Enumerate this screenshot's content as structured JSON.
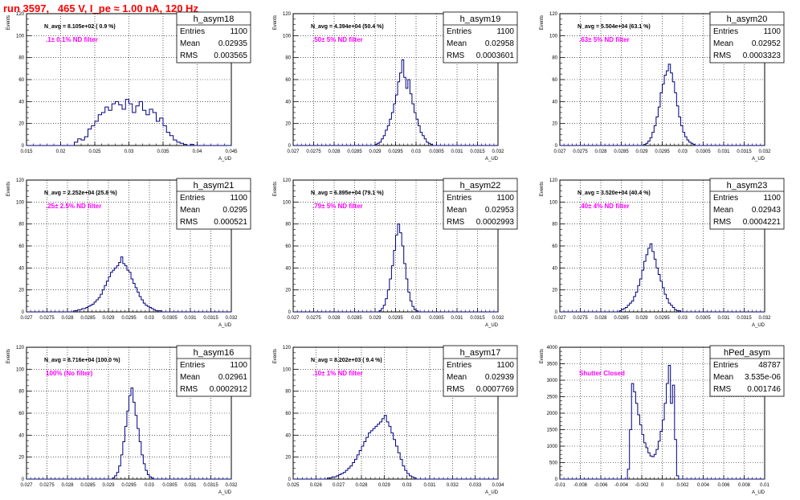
{
  "page": {
    "title": "run 3597,   465 V, I_pe ≈ 1.00 nA, 120 Hz"
  },
  "colors": {
    "histogram": "#000080",
    "annotation": "#ff00ff",
    "title": "#ff0000",
    "grid": "#000000"
  },
  "chart_data": [
    {
      "type": "histogram",
      "name": "h_asym18",
      "stats": [
        [
          "Entries",
          "1100"
        ],
        [
          "Mean",
          "0.02935"
        ],
        [
          "RMS",
          "0.003565"
        ]
      ],
      "navg": "N_avg = 8.105e+02 ( 0.9 %)",
      "label": ".1± 0.1% ND filter",
      "ylabel": "Events",
      "xlabel": "A_UD",
      "xlim": [
        0.015,
        0.045
      ],
      "ylim": [
        0,
        120
      ],
      "xticks": [
        "0.015",
        "0.02",
        "0.025",
        "0.03",
        "0.035",
        "0.04",
        "0.045"
      ],
      "yticks": [
        "0",
        "20",
        "40",
        "60",
        "80",
        "100",
        "120"
      ],
      "x_start": 0.015,
      "bin_width": 0.0005,
      "counts": [
        0,
        0,
        0,
        0,
        0,
        0,
        0,
        0,
        0,
        0,
        0,
        0,
        0,
        0,
        3,
        6,
        5,
        8,
        15,
        18,
        22,
        28,
        30,
        35,
        32,
        38,
        40,
        37,
        33,
        42,
        38,
        30,
        36,
        40,
        32,
        28,
        33,
        30,
        22,
        25,
        18,
        12,
        9,
        5,
        3,
        2,
        1,
        0,
        1,
        0,
        0,
        0,
        0,
        0,
        0,
        0,
        0,
        0,
        0,
        0
      ]
    },
    {
      "type": "histogram",
      "name": "h_asym19",
      "stats": [
        [
          "Entries",
          "1100"
        ],
        [
          "Mean",
          "0.02958"
        ],
        [
          "RMS",
          "0.0003601"
        ]
      ],
      "navg": "N_avg = 4.394e+04 (50.4 %)",
      "label": ".50± 5% ND filter",
      "ylabel": "Events",
      "xlabel": "A_UD",
      "xlim": [
        0.027,
        0.032
      ],
      "ylim": [
        0,
        120
      ],
      "xticks": [
        "0.027",
        "0.0275",
        "0.028",
        "0.0285",
        "0.029",
        "0.0295",
        "0.03",
        "0.0305",
        "0.031",
        "0.0315",
        "0.032"
      ],
      "yticks": [
        "0",
        "20",
        "40",
        "60",
        "80",
        "100",
        "120"
      ],
      "x_start": 0.027,
      "bin_width": 5e-05,
      "counts": [
        0,
        0,
        0,
        0,
        0,
        0,
        0,
        0,
        0,
        0,
        0,
        0,
        0,
        0,
        0,
        0,
        0,
        0,
        0,
        0,
        0,
        0,
        0,
        0,
        0,
        0,
        0,
        0,
        0,
        0,
        0,
        0,
        0,
        0,
        0,
        0,
        0,
        0,
        0,
        0,
        1,
        2,
        3,
        6,
        9,
        14,
        18,
        24,
        30,
        38,
        46,
        58,
        66,
        78,
        62,
        52,
        60,
        47,
        38,
        30,
        24,
        18,
        12,
        9,
        6,
        3,
        2,
        1,
        0,
        0,
        0,
        0,
        0,
        0,
        0,
        0,
        0,
        0,
        0,
        0,
        0,
        0,
        0,
        0,
        0,
        0,
        0,
        0,
        0,
        0,
        0,
        0,
        0,
        0,
        0,
        0,
        0,
        0,
        0,
        0
      ]
    },
    {
      "type": "histogram",
      "name": "h_asym20",
      "stats": [
        [
          "Entries",
          "1100"
        ],
        [
          "Mean",
          "0.02952"
        ],
        [
          "RMS",
          "0.0003323"
        ]
      ],
      "navg": "N_avg = 5.504e+04 (63.1 %)",
      "label": ".63± 5% ND filter",
      "ylabel": "Events",
      "xlabel": "A_UD",
      "xlim": [
        0.027,
        0.032
      ],
      "ylim": [
        0,
        120
      ],
      "xticks": [
        "0.027",
        "0.0275",
        "0.028",
        "0.0285",
        "0.029",
        "0.0295",
        "0.03",
        "0.0305",
        "0.031",
        "0.0315",
        "0.032"
      ],
      "yticks": [
        "0",
        "20",
        "40",
        "60",
        "80",
        "100",
        "120"
      ],
      "x_start": 0.027,
      "bin_width": 5e-05,
      "counts": [
        0,
        0,
        0,
        0,
        0,
        0,
        0,
        0,
        0,
        0,
        0,
        0,
        0,
        0,
        0,
        0,
        0,
        0,
        0,
        0,
        0,
        0,
        0,
        0,
        0,
        0,
        0,
        0,
        0,
        0,
        0,
        0,
        0,
        0,
        0,
        0,
        0,
        0,
        0,
        0,
        0,
        1,
        2,
        4,
        7,
        12,
        18,
        26,
        35,
        48,
        56,
        64,
        68,
        74,
        66,
        58,
        48,
        36,
        26,
        18,
        12,
        8,
        5,
        3,
        2,
        1,
        0,
        0,
        0,
        0,
        0,
        0,
        0,
        0,
        0,
        0,
        0,
        0,
        0,
        0,
        0,
        0,
        0,
        0,
        0,
        0,
        0,
        0,
        0,
        0,
        0,
        0,
        0,
        0,
        0,
        0,
        0,
        0,
        0,
        0
      ]
    },
    {
      "type": "histogram",
      "name": "h_asym21",
      "stats": [
        [
          "Entries",
          "1100"
        ],
        [
          "Mean",
          "0.0295"
        ],
        [
          "RMS",
          "0.000521"
        ]
      ],
      "navg": "N_avg = 2.252e+04 (25.8 %)",
      "label": ".25± 2.5% ND filter",
      "ylabel": "Events",
      "xlabel": "A_UD",
      "xlim": [
        0.027,
        0.032
      ],
      "ylim": [
        0,
        120
      ],
      "xticks": [
        "0.027",
        "0.0275",
        "0.028",
        "0.0285",
        "0.029",
        "0.0295",
        "0.03",
        "0.0305",
        "0.031",
        "0.0315",
        "0.032"
      ],
      "yticks": [
        "0",
        "20",
        "40",
        "60",
        "80",
        "100",
        "120"
      ],
      "x_start": 0.027,
      "bin_width": 5e-05,
      "counts": [
        0,
        0,
        0,
        0,
        0,
        0,
        0,
        0,
        0,
        0,
        0,
        0,
        0,
        0,
        0,
        0,
        0,
        0,
        0,
        0,
        0,
        0,
        0,
        1,
        1,
        2,
        2,
        3,
        3,
        4,
        5,
        6,
        7,
        9,
        11,
        13,
        16,
        20,
        24,
        28,
        32,
        36,
        38,
        40,
        42,
        45,
        50,
        44,
        42,
        38,
        36,
        30,
        26,
        22,
        18,
        14,
        11,
        8,
        6,
        5,
        4,
        3,
        2,
        1,
        1,
        1,
        0,
        0,
        0,
        0,
        0,
        0,
        0,
        0,
        0,
        0,
        0,
        0,
        0,
        0,
        0,
        0,
        0,
        0,
        0,
        0,
        0,
        0,
        0,
        0,
        0,
        0,
        0,
        0,
        0,
        0,
        0,
        0,
        0,
        0
      ]
    },
    {
      "type": "histogram",
      "name": "h_asym22",
      "stats": [
        [
          "Entries",
          "1100"
        ],
        [
          "Mean",
          "0.02953"
        ],
        [
          "RMS",
          "0.0002993"
        ]
      ],
      "navg": "N_avg = 6.895e+04 (79.1 %)",
      "label": ".79± 5% ND filter",
      "ylabel": "Events",
      "xlabel": "A_UD",
      "xlim": [
        0.027,
        0.032
      ],
      "ylim": [
        0,
        120
      ],
      "xticks": [
        "0.027",
        "0.0275",
        "0.028",
        "0.0285",
        "0.029",
        "0.0295",
        "0.03",
        "0.0305",
        "0.031",
        "0.0315",
        "0.032"
      ],
      "yticks": [
        "0",
        "20",
        "40",
        "60",
        "80",
        "100",
        "120"
      ],
      "x_start": 0.027,
      "bin_width": 5e-05,
      "counts": [
        0,
        0,
        0,
        0,
        0,
        0,
        0,
        0,
        0,
        0,
        0,
        0,
        0,
        0,
        0,
        0,
        0,
        0,
        0,
        0,
        0,
        0,
        0,
        0,
        0,
        0,
        0,
        0,
        0,
        0,
        0,
        0,
        0,
        0,
        0,
        0,
        0,
        0,
        0,
        0,
        0,
        0,
        1,
        3,
        6,
        12,
        20,
        30,
        42,
        56,
        70,
        80,
        72,
        60,
        44,
        30,
        18,
        10,
        5,
        2,
        1,
        0,
        0,
        0,
        0,
        0,
        0,
        0,
        0,
        0,
        0,
        0,
        0,
        0,
        0,
        0,
        0,
        0,
        0,
        0,
        0,
        0,
        0,
        0,
        0,
        0,
        0,
        0,
        0,
        0,
        0,
        0,
        0,
        0,
        0,
        0,
        0,
        0,
        0,
        0
      ]
    },
    {
      "type": "histogram",
      "name": "h_asym23",
      "stats": [
        [
          "Entries",
          "1100"
        ],
        [
          "Mean",
          "0.02943"
        ],
        [
          "RMS",
          "0.0004221"
        ]
      ],
      "navg": "N_avg = 3.520e+04 (40.4 %)",
      "label": ".40± 4% ND filter",
      "ylabel": "Events",
      "xlabel": "A_UD",
      "xlim": [
        0.027,
        0.032
      ],
      "ylim": [
        0,
        120
      ],
      "xticks": [
        "0.027",
        "0.0275",
        "0.028",
        "0.0285",
        "0.029",
        "0.0295",
        "0.03",
        "0.0305",
        "0.031",
        "0.0315",
        "0.032"
      ],
      "yticks": [
        "0",
        "20",
        "40",
        "60",
        "80",
        "100",
        "120"
      ],
      "x_start": 0.027,
      "bin_width": 5e-05,
      "counts": [
        0,
        0,
        0,
        0,
        0,
        0,
        0,
        0,
        0,
        0,
        0,
        0,
        0,
        0,
        0,
        0,
        0,
        0,
        0,
        0,
        0,
        0,
        0,
        0,
        0,
        0,
        0,
        0,
        0,
        1,
        2,
        3,
        4,
        6,
        8,
        10,
        14,
        18,
        24,
        30,
        38,
        46,
        52,
        58,
        62,
        55,
        48,
        40,
        34,
        28,
        22,
        16,
        12,
        8,
        6,
        4,
        2,
        1,
        1,
        0,
        0,
        0,
        0,
        0,
        0,
        0,
        0,
        0,
        0,
        0,
        0,
        0,
        0,
        0,
        0,
        0,
        0,
        0,
        0,
        0,
        0,
        0,
        0,
        0,
        0,
        0,
        0,
        0,
        0,
        0,
        0,
        0,
        0,
        0,
        0,
        0,
        0,
        0,
        0,
        0
      ]
    },
    {
      "type": "histogram",
      "name": "h_asym16",
      "stats": [
        [
          "Entries",
          "1100"
        ],
        [
          "Mean",
          "0.02961"
        ],
        [
          "RMS",
          "0.0002912"
        ]
      ],
      "navg": "N_avg = 8.716e+04 (100.0 %)",
      "label": "100% (No filter)",
      "ylabel": "Events",
      "xlabel": "A_UD",
      "xlim": [
        0.027,
        0.032
      ],
      "ylim": [
        0,
        120
      ],
      "xticks": [
        "0.027",
        "0.0275",
        "0.028",
        "0.0285",
        "0.029",
        "0.0295",
        "0.03",
        "0.0305",
        "0.031",
        "0.0315",
        "0.032"
      ],
      "yticks": [
        "0",
        "20",
        "40",
        "60",
        "80",
        "100",
        "120"
      ],
      "x_start": 0.027,
      "bin_width": 5e-05,
      "counts": [
        0,
        0,
        0,
        0,
        0,
        0,
        0,
        0,
        0,
        0,
        0,
        0,
        0,
        0,
        0,
        0,
        0,
        0,
        0,
        0,
        0,
        0,
        0,
        0,
        0,
        0,
        0,
        0,
        0,
        0,
        0,
        0,
        0,
        0,
        0,
        0,
        0,
        0,
        0,
        0,
        0,
        0,
        1,
        3,
        6,
        12,
        22,
        34,
        48,
        62,
        76,
        83,
        70,
        58,
        46,
        34,
        22,
        14,
        8,
        4,
        2,
        1,
        0,
        0,
        0,
        0,
        0,
        0,
        0,
        0,
        0,
        0,
        0,
        0,
        0,
        0,
        0,
        0,
        0,
        0,
        0,
        0,
        0,
        0,
        0,
        0,
        0,
        0,
        0,
        0,
        0,
        0,
        0,
        0,
        0,
        0,
        0,
        0,
        0,
        0
      ]
    },
    {
      "type": "histogram",
      "name": "h_asym17",
      "stats": [
        [
          "Entries",
          "1100"
        ],
        [
          "Mean",
          "0.02939"
        ],
        [
          "RMS",
          "0.0007769"
        ]
      ],
      "navg": "N_avg = 8.202e+03 ( 9.4 %)",
      "label": ".10± 1% ND filter",
      "ylabel": "Events",
      "xlabel": "A_UD",
      "xlim": [
        0.025,
        0.034
      ],
      "ylim": [
        0,
        120
      ],
      "xticks": [
        "0.025",
        "0.026",
        "0.027",
        "0.028",
        "0.029",
        "0.03",
        "0.031",
        "0.032",
        "0.033",
        "0.034"
      ],
      "yticks": [
        "0",
        "20",
        "40",
        "60",
        "80",
        "100",
        "120"
      ],
      "x_start": 0.025,
      "bin_width": 0.0001,
      "counts": [
        0,
        0,
        0,
        0,
        0,
        0,
        0,
        0,
        0,
        0,
        0,
        0,
        0,
        0,
        0,
        1,
        1,
        2,
        2,
        3,
        4,
        5,
        6,
        8,
        10,
        12,
        15,
        18,
        22,
        26,
        30,
        34,
        38,
        42,
        44,
        46,
        48,
        50,
        52,
        55,
        58,
        52,
        48,
        42,
        36,
        30,
        24,
        18,
        12,
        8,
        5,
        3,
        2,
        1,
        0,
        0,
        0,
        0,
        0,
        0,
        0,
        0,
        0,
        0,
        0,
        0,
        0,
        0,
        0,
        0,
        0,
        0,
        0,
        0,
        0,
        0,
        0,
        0,
        0,
        0,
        0,
        0,
        0,
        0,
        0,
        0,
        0,
        0,
        0,
        0
      ]
    },
    {
      "type": "histogram",
      "name": "hPed_asym",
      "stats": [
        [
          "Entries",
          "48787"
        ],
        [
          "Mean",
          "3.535e-06"
        ],
        [
          "RMS",
          "0.001746"
        ]
      ],
      "navg": "",
      "label": "Shutter Closed",
      "ylabel": "Events",
      "xlabel": "A_UD",
      "xlim": [
        -0.01,
        0.01
      ],
      "ylim": [
        0,
        4000
      ],
      "xticks": [
        "-0.01",
        "-0.008",
        "-0.006",
        "-0.004",
        "-0.002",
        "0",
        "0.002",
        "0.004",
        "0.006",
        "0.008",
        "0.01"
      ],
      "yticks": [
        "0",
        "500",
        "1000",
        "1500",
        "2000",
        "2500",
        "3000",
        "3500",
        "4000"
      ],
      "x_start": -0.01,
      "bin_width": 0.0002,
      "counts": [
        0,
        0,
        0,
        0,
        0,
        0,
        0,
        0,
        0,
        0,
        0,
        0,
        0,
        0,
        0,
        0,
        0,
        0,
        0,
        0,
        0,
        0,
        0,
        0,
        0,
        0,
        0,
        0,
        0,
        0,
        0,
        0,
        0,
        300,
        1500,
        2900,
        2650,
        2300,
        1950,
        1650,
        1350,
        1100,
        950,
        800,
        700,
        680,
        750,
        900,
        1150,
        1450,
        1800,
        2300,
        2900,
        3450,
        2300,
        2850,
        1200,
        100,
        0,
        0,
        0,
        0,
        0,
        0,
        0,
        0,
        0,
        0,
        0,
        0,
        0,
        0,
        0,
        0,
        0,
        0,
        0,
        0,
        0,
        0,
        0,
        0,
        0,
        0,
        0,
        0,
        0,
        0,
        0,
        0,
        0,
        0,
        0,
        0,
        0,
        0,
        0,
        0,
        0,
        0
      ]
    }
  ]
}
